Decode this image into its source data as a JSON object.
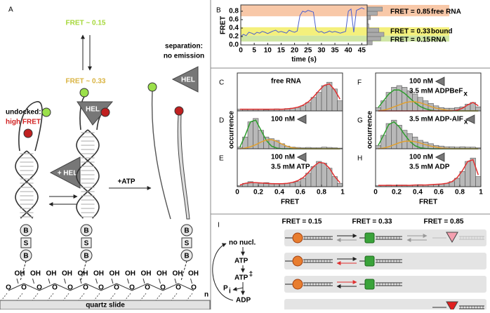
{
  "figure": {
    "panel_a": {
      "label": "A",
      "fret_low": "FRET ~ 0.15",
      "fret_mid": "FRET ~ 0.33",
      "undocked": "undocked:",
      "high_fret": "high FRET",
      "separation": "separation:",
      "no_emission": "no emission",
      "hel": "HEL",
      "plus_hel": "+ HEL",
      "plus_atp": "+ATP",
      "biotin": [
        "B",
        "S",
        "B"
      ],
      "oh": [
        "OH",
        "OH",
        "OH",
        "OH",
        "OH",
        "OH",
        "OH",
        "OH",
        "OH",
        "OH",
        "OH",
        "OH"
      ],
      "o": [
        "O",
        "O",
        "O",
        "O",
        "O",
        "O",
        "O",
        "O",
        "O",
        "O",
        "O",
        "O",
        "O"
      ],
      "n": "n",
      "slide": "quartz slide"
    },
    "panel_i": {
      "label": "I",
      "no_nucl": "no nucl.",
      "atp": "ATP",
      "atp_ts": "ATP",
      "ts_mark": "‡",
      "p": "P",
      "i": "i",
      "adp": "ADP",
      "headers": [
        "FRET = 0.15",
        "FRET = 0.33",
        "FRET = 0.85"
      ]
    }
  },
  "chart_data": [
    {
      "type": "line",
      "label": "B",
      "x_label": "time (s)",
      "y_label": "FRET",
      "color": "#4a5fd0",
      "x": [
        0,
        1,
        2,
        3,
        4,
        5,
        6,
        7,
        8,
        9,
        10,
        11,
        12,
        13,
        14,
        15,
        16,
        17,
        18,
        19,
        20,
        21,
        22,
        23,
        24,
        25,
        26,
        27,
        28,
        29,
        30,
        31,
        32,
        33,
        34,
        35,
        36,
        37,
        38,
        39,
        40,
        41,
        42,
        43,
        44,
        45,
        46
      ],
      "values": [
        0.2,
        0.25,
        0.22,
        0.3,
        0.28,
        0.25,
        0.3,
        0.28,
        0.32,
        0.3,
        0.27,
        0.3,
        0.33,
        0.35,
        0.3,
        0.32,
        0.3,
        0.28,
        0.35,
        0.32,
        0.3,
        0.33,
        0.7,
        0.8,
        0.78,
        0.82,
        0.8,
        0.78,
        0.35,
        0.3,
        0.32,
        0.28,
        0.3,
        0.33,
        0.3,
        0.32,
        0.3,
        0.28,
        0.3,
        0.32,
        0.8,
        0.85,
        0.3,
        0.82,
        0.85,
        0.88,
        0.85
      ],
      "xlim": [
        0,
        47
      ],
      "xticks": [
        0,
        5,
        10,
        15,
        20,
        25,
        30,
        35,
        40,
        45
      ],
      "ylim": [
        0,
        0.95
      ],
      "yticks": [
        {
          "value": 0,
          "label": "0.0"
        },
        0.2,
        0.4,
        0.6,
        0.8
      ],
      "bands": [
        {
          "range": [
            0.68,
            0.95
          ],
          "color": "#f8c8a8",
          "labels": [
            "FRET = 0.85",
            "free RNA"
          ]
        },
        {
          "range": [
            0.22,
            0.42
          ],
          "color": "#f4f07c",
          "labels": [
            "FRET = 0.33",
            "bound"
          ]
        },
        {
          "range": [
            0.08,
            0.22
          ],
          "color": "#cfe6a4",
          "labels": [
            "FRET = 0.15",
            "RNA"
          ]
        }
      ],
      "marginal": {
        "bins": [
          0,
          0.1,
          0.2,
          0.3,
          0.4,
          0.5,
          0.6,
          0.7,
          0.8,
          0.9
        ],
        "counts": [
          0.3,
          0.8,
          1,
          0.7,
          0.1,
          0.05,
          0.2,
          0.6,
          0.9
        ]
      }
    },
    {
      "type": "histogram",
      "label": "C",
      "texts": [
        "free RNA"
      ],
      "icon": false,
      "color": "#b8b8b8",
      "bins": [
        0,
        0.05,
        0.1,
        0.15,
        0.2,
        0.25,
        0.3,
        0.35,
        0.4,
        0.45,
        0.5,
        0.55,
        0.6,
        0.65,
        0.7,
        0.75,
        0.8,
        0.85,
        0.9,
        0.95,
        1
      ],
      "values": [
        0.05,
        0.04,
        0.05,
        0.04,
        0.05,
        0.03,
        0.05,
        0.06,
        0.05,
        0.07,
        0.08,
        0.1,
        0.15,
        0.25,
        0.4,
        0.55,
        0.75,
        0.85,
        0.65,
        0.3
      ],
      "fits": [
        {
          "color": "#e03030",
          "values": [
            0.05,
            0.05,
            0.05,
            0.05,
            0.05,
            0.05,
            0.05,
            0.05,
            0.05,
            0.06,
            0.08,
            0.11,
            0.17,
            0.27,
            0.42,
            0.6,
            0.76,
            0.8,
            0.62,
            0.35
          ]
        }
      ],
      "xlim": [
        0,
        1
      ],
      "ylim": [
        0,
        1
      ]
    },
    {
      "type": "histogram",
      "label": "D",
      "texts": [
        "100 nM"
      ],
      "icon": true,
      "color": "#b8b8b8",
      "y_label": "occurrence",
      "bins": [
        0,
        0.05,
        0.1,
        0.15,
        0.2,
        0.25,
        0.3,
        0.35,
        0.4,
        0.45,
        0.5,
        0.55,
        0.6,
        0.65,
        0.7,
        0.75,
        0.8,
        0.85,
        0.9,
        0.95,
        1
      ],
      "values": [
        0.05,
        0.35,
        0.8,
        0.9,
        0.55,
        0.35,
        0.3,
        0.25,
        0.15,
        0.08,
        0.05,
        0.04,
        0.03,
        0.04,
        0.03,
        0.03,
        0.05,
        0.04,
        0.03,
        0.02
      ],
      "fits": [
        {
          "color": "#2e9e2e",
          "values": [
            0.05,
            0.4,
            0.8,
            0.85,
            0.55,
            0.25,
            0.08,
            0.02,
            0,
            0,
            0,
            0,
            0,
            0,
            0,
            0,
            0,
            0,
            0,
            0
          ]
        },
        {
          "color": "#e0a030",
          "values": [
            0,
            0.02,
            0.06,
            0.12,
            0.2,
            0.26,
            0.27,
            0.22,
            0.14,
            0.07,
            0.03,
            0.01,
            0,
            0,
            0,
            0,
            0,
            0,
            0,
            0
          ]
        }
      ],
      "xlim": [
        0,
        1
      ],
      "ylim": [
        0,
        1
      ]
    },
    {
      "type": "histogram",
      "label": "E",
      "texts": [
        "100 nM",
        "3.5 mM ATP"
      ],
      "icon": true,
      "color": "#b8b8b8",
      "x_label": "FRET",
      "bins": [
        0,
        0.05,
        0.1,
        0.15,
        0.2,
        0.25,
        0.3,
        0.35,
        0.4,
        0.45,
        0.5,
        0.55,
        0.6,
        0.65,
        0.7,
        0.75,
        0.8,
        0.85,
        0.9,
        0.95,
        1
      ],
      "values": [
        0.03,
        0.1,
        0.15,
        0.12,
        0.1,
        0.12,
        0.1,
        0.08,
        0.08,
        0.1,
        0.12,
        0.15,
        0.25,
        0.4,
        0.6,
        0.75,
        0.7,
        0.55,
        0.3,
        0.1
      ],
      "fits": [
        {
          "color": "#e03030",
          "values": [
            0.05,
            0.1,
            0.12,
            0.12,
            0.11,
            0.1,
            0.09,
            0.09,
            0.09,
            0.1,
            0.13,
            0.18,
            0.27,
            0.42,
            0.6,
            0.72,
            0.7,
            0.55,
            0.3,
            0.12
          ]
        }
      ],
      "xlim": [
        0,
        1
      ],
      "xticks": [
        0,
        0.2,
        0.4,
        0.6,
        0.8,
        1
      ],
      "ylim": [
        0,
        1
      ]
    },
    {
      "type": "histogram",
      "label": "F",
      "texts": [
        "100 nM",
        "3.5 mM ADPBeF"
      ],
      "subscript": "x",
      "icon": true,
      "color": "#b8b8b8",
      "bins": [
        0,
        0.05,
        0.1,
        0.15,
        0.2,
        0.25,
        0.3,
        0.35,
        0.4,
        0.45,
        0.5,
        0.55,
        0.6,
        0.65,
        0.7,
        0.75,
        0.8,
        0.85,
        0.9,
        0.95,
        1
      ],
      "values": [
        0.1,
        0.3,
        0.55,
        0.7,
        0.75,
        0.7,
        0.6,
        0.5,
        0.4,
        0.3,
        0.22,
        0.15,
        0.1,
        0.08,
        0.08,
        0.1,
        0.12,
        0.2,
        0.25,
        0.12
      ],
      "fits": [
        {
          "color": "#2e9e2e",
          "values": [
            0.1,
            0.3,
            0.5,
            0.62,
            0.62,
            0.52,
            0.38,
            0.24,
            0.13,
            0.06,
            0.02,
            0,
            0,
            0,
            0,
            0,
            0,
            0,
            0,
            0
          ]
        },
        {
          "color": "#e0a030",
          "values": [
            0,
            0.02,
            0.06,
            0.12,
            0.18,
            0.24,
            0.27,
            0.27,
            0.24,
            0.19,
            0.13,
            0.08,
            0.05,
            0.02,
            0.01,
            0,
            0,
            0,
            0,
            0
          ]
        },
        {
          "color": "#e03030",
          "values": [
            0,
            0,
            0,
            0,
            0,
            0,
            0,
            0,
            0,
            0,
            0,
            0,
            0,
            0,
            0,
            0.02,
            0.08,
            0.18,
            0.25,
            0.15
          ]
        }
      ],
      "xlim": [
        0,
        1
      ],
      "ylim": [
        0,
        1
      ]
    },
    {
      "type": "histogram",
      "label": "G",
      "texts": [
        "3.5 mM ADP-AlF"
      ],
      "subscript": "x",
      "icon": true,
      "color": "#b8b8b8",
      "y_label": "occurrence",
      "bins": [
        0,
        0.05,
        0.1,
        0.15,
        0.2,
        0.25,
        0.3,
        0.35,
        0.4,
        0.45,
        0.5,
        0.55,
        0.6,
        0.65,
        0.7,
        0.75,
        0.8,
        0.85,
        0.9,
        0.95,
        1
      ],
      "values": [
        0.1,
        0.4,
        0.75,
        0.85,
        0.7,
        0.55,
        0.45,
        0.35,
        0.25,
        0.2,
        0.15,
        0.1,
        0.08,
        0.06,
        0.06,
        0.05,
        0.06,
        0.05,
        0.05,
        0.03
      ],
      "fits": [
        {
          "color": "#2e9e2e",
          "values": [
            0.1,
            0.4,
            0.72,
            0.8,
            0.65,
            0.42,
            0.22,
            0.09,
            0.03,
            0.01,
            0,
            0,
            0,
            0,
            0,
            0,
            0,
            0,
            0,
            0
          ]
        },
        {
          "color": "#e0a030",
          "values": [
            0,
            0.02,
            0.06,
            0.12,
            0.18,
            0.22,
            0.23,
            0.21,
            0.17,
            0.12,
            0.08,
            0.05,
            0.02,
            0.01,
            0,
            0,
            0,
            0,
            0,
            0
          ]
        }
      ],
      "xlim": [
        0,
        1
      ],
      "ylim": [
        0,
        1
      ]
    },
    {
      "type": "histogram",
      "label": "H",
      "texts": [
        "100 nM",
        "3.5 mM ADP"
      ],
      "icon": true,
      "color": "#b8b8b8",
      "x_label": "FRET",
      "bins": [
        0,
        0.05,
        0.1,
        0.15,
        0.2,
        0.25,
        0.3,
        0.35,
        0.4,
        0.45,
        0.5,
        0.55,
        0.6,
        0.65,
        0.7,
        0.75,
        0.8,
        0.85,
        0.9,
        0.95,
        1
      ],
      "values": [
        0.03,
        0.04,
        0.05,
        0.04,
        0.05,
        0.05,
        0.04,
        0.05,
        0.06,
        0.05,
        0.06,
        0.07,
        0.08,
        0.1,
        0.15,
        0.25,
        0.45,
        0.75,
        0.85,
        0.3
      ],
      "fits": [
        {
          "color": "#e03030",
          "values": [
            0.04,
            0.04,
            0.04,
            0.04,
            0.04,
            0.04,
            0.04,
            0.05,
            0.05,
            0.05,
            0.06,
            0.07,
            0.08,
            0.1,
            0.15,
            0.27,
            0.48,
            0.75,
            0.8,
            0.35
          ]
        }
      ],
      "xlim": [
        0,
        1
      ],
      "xticks": [
        0,
        0.2,
        0.4,
        0.6,
        0.8,
        1
      ],
      "ylim": [
        0,
        1
      ]
    }
  ]
}
